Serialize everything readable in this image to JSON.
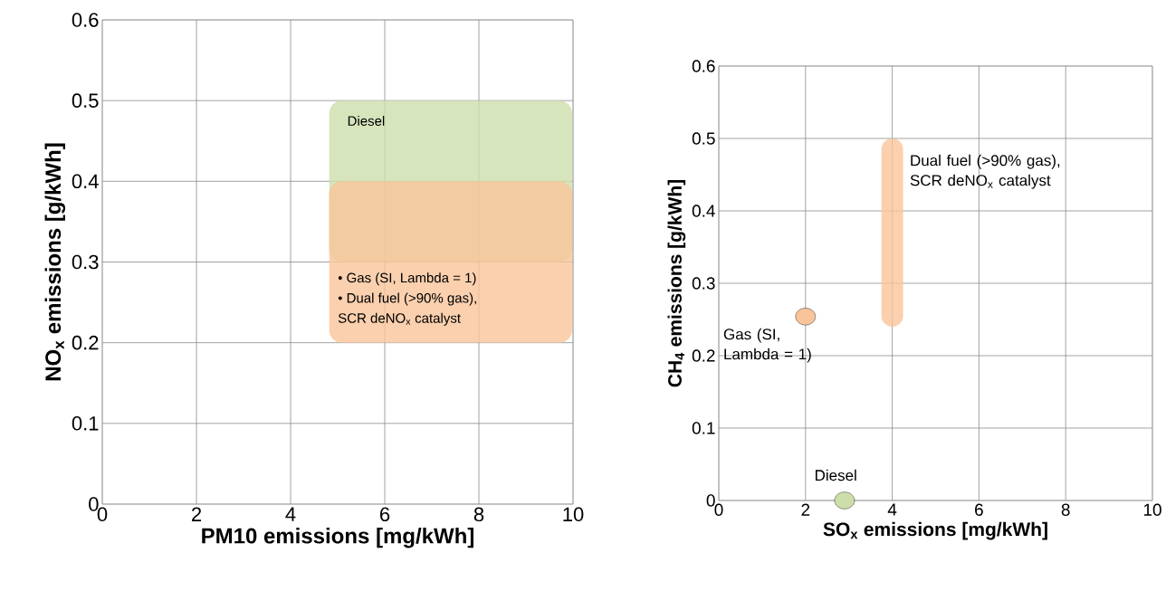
{
  "chart_data": [
    {
      "type": "bar",
      "grid": true,
      "xlabel": "PM10 emissions [mg/kWh]",
      "ylabel": "NO$_{x}$ emissions [g/kWh]",
      "xlim": [
        0,
        10
      ],
      "ylim": [
        0,
        0.6
      ],
      "xticks": [
        0,
        2,
        4,
        6,
        8,
        10
      ],
      "yticks": [
        0,
        0.1,
        0.2,
        0.3,
        0.4,
        0.5,
        0.6
      ],
      "series": [
        {
          "name": "Diesel",
          "color": "#cddeab",
          "x": [
            7.4
          ],
          "values": [
            0.2
          ],
          "base": [
            0.3
          ]
        },
        {
          "color": "#f9c49a",
          "x": [
            7.4
          ],
          "values": [
            0.2
          ],
          "base": [
            0.2
          ]
        }
      ],
      "annotations": [
        "• Gas (SI, Lambda = 1)",
        "• Dual fuel  (>90% gas),",
        "SCR deNO$_{x}$ catalyst"
      ]
    },
    {
      "type": "bar",
      "grid": true,
      "xlabel": "SO$_{x}$ emissions [mg/kWh]",
      "ylabel": "CH$_{4}$ emissions [g/kWh]",
      "xlim": [
        0,
        10
      ],
      "ylim": [
        0,
        0.6
      ],
      "xticks": [
        0,
        2,
        4,
        6,
        8,
        10
      ],
      "yticks": [
        0,
        0.1,
        0.2,
        0.3,
        0.4,
        0.5,
        0.6
      ],
      "series": [
        {
          "name": "Gas (SI, Lambda = 1)",
          "type": "scatter",
          "marker": "circle",
          "color": "#f9c49a",
          "x": [
            2
          ],
          "values": [
            0.254
          ]
        },
        {
          "name": "Dual fuel  (>90% gas), SCR deNO$_{x}$ catalyst",
          "color": "#f9c49a",
          "x": [
            4
          ],
          "values": [
            0.26
          ],
          "base": [
            0.24
          ]
        },
        {
          "name": "Diesel",
          "type": "scatter",
          "marker": "circle",
          "color": "#cddeab",
          "x": [
            2.9
          ],
          "values": [
            0
          ]
        }
      ]
    }
  ]
}
